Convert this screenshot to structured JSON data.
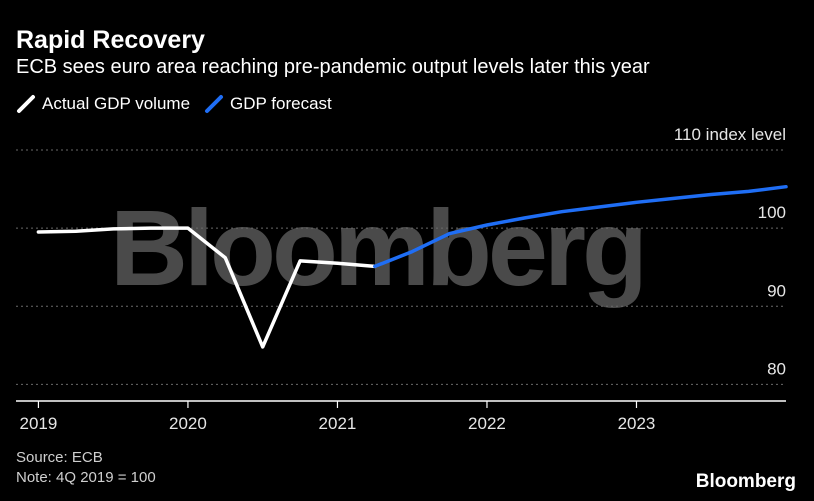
{
  "header": {
    "title": "Rapid Recovery",
    "subtitle": "ECB sees euro area reaching pre-pandemic output levels later this year"
  },
  "legend": {
    "actual_label": "Actual GDP volume",
    "forecast_label": "GDP forecast"
  },
  "footer": {
    "source": "Source: ECB",
    "note": "Note: 4Q 2019 = 100",
    "brand": "Bloomberg"
  },
  "watermark": "Bloomberg",
  "colors": {
    "background": "#000000",
    "actual": "#ffffff",
    "forecast": "#1f6ef5",
    "grid": "#6a6a6a",
    "watermark": "#4a4a4a"
  },
  "chart_data": {
    "type": "line",
    "x_axis": {
      "ticks": [
        {
          "label": "2019",
          "value": 2019.0
        },
        {
          "label": "2020",
          "value": 2020.0
        },
        {
          "label": "2021",
          "value": 2021.0
        },
        {
          "label": "2022",
          "value": 2022.0
        },
        {
          "label": "2023",
          "value": 2023.0
        }
      ],
      "min": 2018.85,
      "max": 2024.0
    },
    "y_axis": {
      "min": 78,
      "max": 110,
      "ticks": [
        {
          "label": "110 index level",
          "value": 110
        },
        {
          "label": "100",
          "value": 100
        },
        {
          "label": "90",
          "value": 90
        },
        {
          "label": "80",
          "value": 80
        }
      ]
    },
    "grid": true,
    "legend_position": "top-left",
    "series": [
      {
        "name": "Actual GDP volume",
        "points": [
          {
            "x": 2019.0,
            "y": 99.5
          },
          {
            "x": 2019.25,
            "y": 99.6
          },
          {
            "x": 2019.5,
            "y": 99.9
          },
          {
            "x": 2019.75,
            "y": 100.0
          },
          {
            "x": 2020.0,
            "y": 100.0
          },
          {
            "x": 2020.25,
            "y": 96.2
          },
          {
            "x": 2020.5,
            "y": 84.8
          },
          {
            "x": 2020.75,
            "y": 95.8
          },
          {
            "x": 2021.0,
            "y": 95.5
          },
          {
            "x": 2021.25,
            "y": 95.1
          }
        ]
      },
      {
        "name": "GDP forecast",
        "points": [
          {
            "x": 2021.25,
            "y": 95.1
          },
          {
            "x": 2021.5,
            "y": 97.0
          },
          {
            "x": 2021.75,
            "y": 99.3
          },
          {
            "x": 2022.0,
            "y": 100.4
          },
          {
            "x": 2022.25,
            "y": 101.3
          },
          {
            "x": 2022.5,
            "y": 102.1
          },
          {
            "x": 2022.75,
            "y": 102.7
          },
          {
            "x": 2023.0,
            "y": 103.3
          },
          {
            "x": 2023.25,
            "y": 103.8
          },
          {
            "x": 2023.5,
            "y": 104.3
          },
          {
            "x": 2023.75,
            "y": 104.7
          },
          {
            "x": 2024.0,
            "y": 105.3
          }
        ]
      }
    ]
  }
}
